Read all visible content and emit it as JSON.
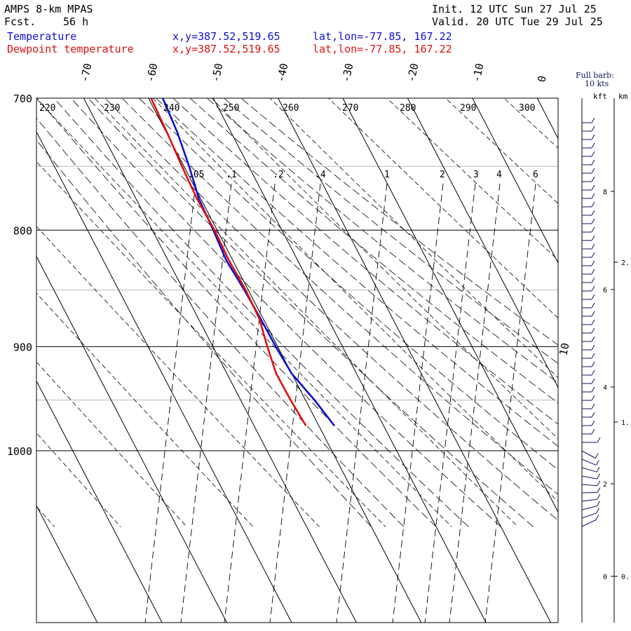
{
  "header": {
    "model": "AMPS 8-km MPAS",
    "fcst_label": "Fcst.",
    "fcst_value": "56 h",
    "init": "Init. 12 UTC Sun 27 Jul 25",
    "valid": "Valid. 20 UTC Tue 29 Jul 25"
  },
  "legend": [
    {
      "name": "Temperature",
      "coords": "x,y=387.52,519.65",
      "latlon": "lat,lon=-77.85, 167.22",
      "color": "#1010d0"
    },
    {
      "name": "Dewpoint temperature",
      "coords": "x,y=387.52,519.65",
      "latlon": "lat,lon=-77.85, 167.22",
      "color": "#e01010"
    }
  ],
  "barb_legend": {
    "line1": "Full barb:",
    "line2": "10 kts",
    "kft": "kft",
    "km": "km"
  },
  "chart_data": {
    "type": "line",
    "pressure_ticks": [
      "700",
      "800",
      "900",
      "1000"
    ],
    "temperature_ticks": [
      "-70",
      "-60",
      "-50",
      "-40",
      "-30",
      "-20",
      "-10",
      "0",
      "10"
    ],
    "theta_labels": [
      "220",
      "230",
      "240",
      "250",
      "260",
      "270",
      "280",
      "290",
      "300"
    ],
    "mixing_ratio_labels": [
      ".05",
      ".1",
      ".2",
      ".4",
      "1",
      "2",
      "3",
      "4",
      "6"
    ],
    "kft_ticks": [
      "8",
      "6",
      "4",
      "2",
      "0"
    ],
    "km_ticks": [
      "2.",
      "1.",
      "0."
    ],
    "series": [
      {
        "name": "Temperature",
        "color": "#1010d0",
        "points": [
          [
            700,
            -27.8
          ],
          [
            725,
            -28.3
          ],
          [
            750,
            -29.2
          ],
          [
            775,
            -30.3
          ],
          [
            800,
            -30.6
          ],
          [
            825,
            -31.0
          ],
          [
            850,
            -30.6
          ],
          [
            875,
            -30.4
          ],
          [
            900,
            -30.3
          ],
          [
            925,
            -30.0
          ],
          [
            950,
            -28.6
          ],
          [
            975,
            -27.6
          ]
        ]
      },
      {
        "name": "Dewpoint temperature",
        "color": "#e01010",
        "points": [
          [
            700,
            -29.6
          ],
          [
            725,
            -29.9
          ],
          [
            750,
            -30.3
          ],
          [
            775,
            -30.6
          ],
          [
            800,
            -30.4
          ],
          [
            825,
            -30.6
          ],
          [
            850,
            -30.4
          ],
          [
            875,
            -30.6
          ],
          [
            900,
            -31.6
          ],
          [
            925,
            -32.4
          ],
          [
            950,
            -32.3
          ],
          [
            975,
            -32.0
          ]
        ]
      }
    ],
    "wind_barbs_note": ""
  }
}
